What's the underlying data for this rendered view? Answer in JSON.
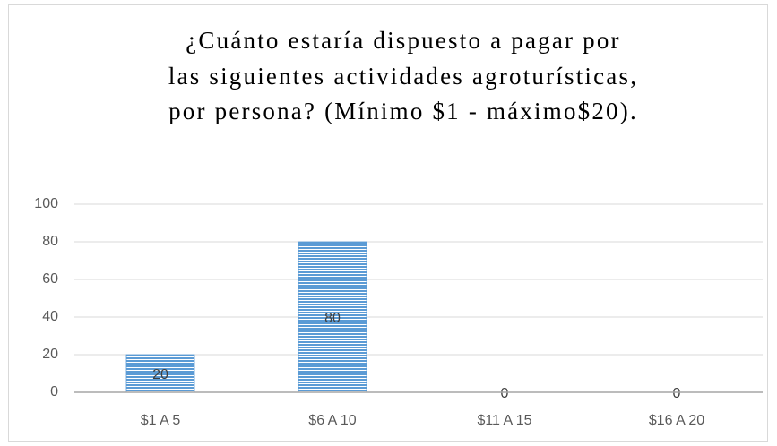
{
  "chart_data": {
    "type": "bar",
    "title": [
      "¿Cuánto estaría dispuesto a pagar por",
      "las siguientes actividades agroturísticas,",
      "por persona? (Mínimo $1 - máximo$20)."
    ],
    "categories": [
      "$1 A 5",
      "$6 A 10",
      "$11 A 15",
      "$16 A 20"
    ],
    "values": [
      20,
      80,
      0,
      0
    ],
    "color": "#5b9bd5",
    "ylim": [
      0,
      100
    ],
    "yticks": [
      0,
      20,
      40,
      60,
      80,
      100
    ],
    "grid": true
  }
}
